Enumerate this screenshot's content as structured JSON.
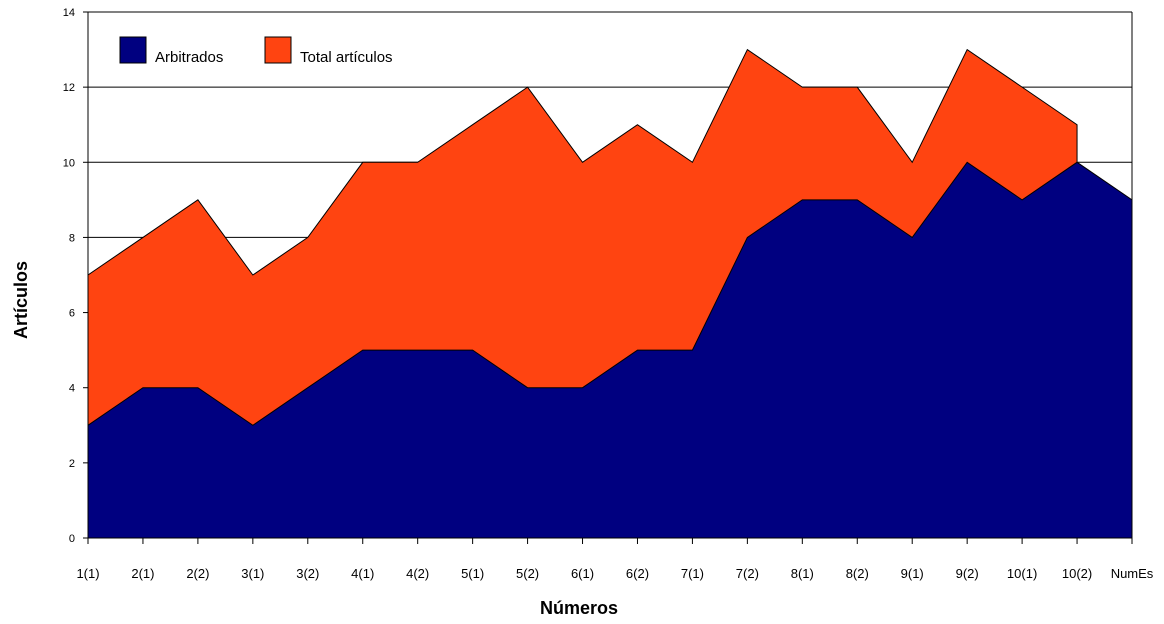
{
  "chart_data": {
    "type": "area",
    "stacked": false,
    "xlabel": "Números",
    "ylabel": "Artículos",
    "ylim": [
      0,
      14
    ],
    "yticks": [
      0,
      2,
      4,
      6,
      8,
      10,
      12,
      14
    ],
    "grid": "horizontal",
    "legend_position": "top-left",
    "categories": [
      "1(1)",
      "2(1)",
      "2(2)",
      "3(1)",
      "3(2)",
      "4(1)",
      "4(2)",
      "5(1)",
      "5(2)",
      "6(1)",
      "6(2)",
      "7(1)",
      "7(2)",
      "8(1)",
      "8(2)",
      "9(1)",
      "9(2)",
      "10(1)",
      "10(2)",
      "NumEs"
    ],
    "series": [
      {
        "name": "Total artículos",
        "color": "#FF4411",
        "values": [
          7,
          8,
          9,
          7,
          8,
          10,
          10,
          11,
          12,
          10,
          11,
          10,
          13,
          12,
          12,
          10,
          13,
          12,
          11,
          null
        ]
      },
      {
        "name": "Arbitrados",
        "color": "#000080",
        "values": [
          3,
          4,
          4,
          3,
          4,
          5,
          5,
          5,
          4,
          4,
          5,
          5,
          8,
          9,
          9,
          8,
          10,
          9,
          10,
          9
        ]
      }
    ]
  }
}
